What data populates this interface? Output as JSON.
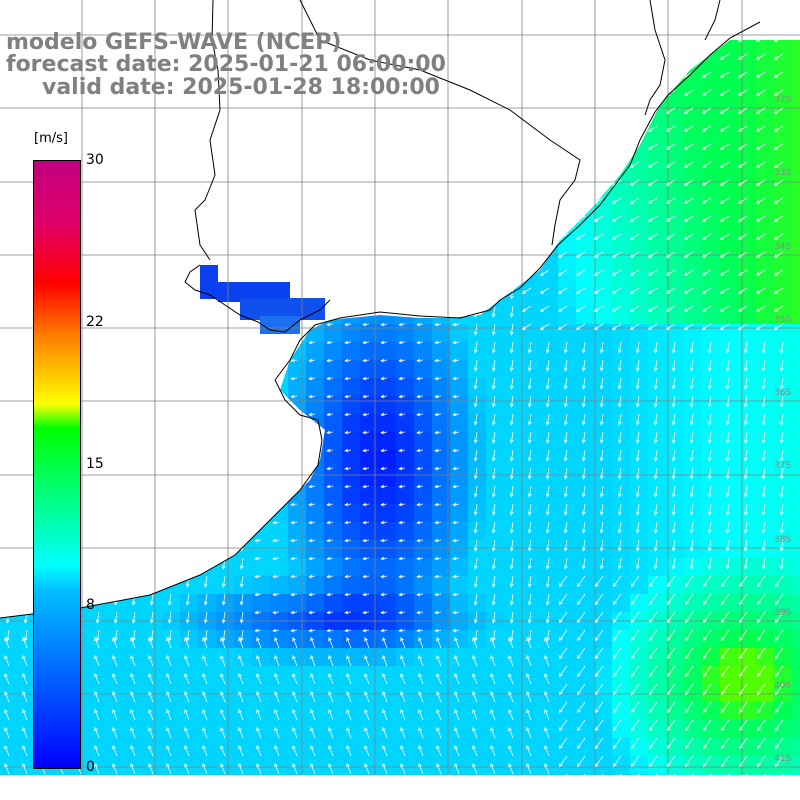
{
  "header": {
    "line1": "modelo GEFS-WAVE (NCEP)",
    "line2": "forecast date: 2025-01-21 06:00:00",
    "line3": "valid date: 2025-01-28 18:00:00"
  },
  "colorbar": {
    "unit": "[m/s]",
    "ticks": [
      {
        "label": "30",
        "value": 30
      },
      {
        "label": "22",
        "value": 22
      },
      {
        "label": "15",
        "value": 15
      },
      {
        "label": "8",
        "value": 8
      },
      {
        "label": "0",
        "value": 0
      }
    ],
    "colors": [
      "#0000ff",
      "#00bfff",
      "#00ffff",
      "#00ff00",
      "#ffff00",
      "#ff8000",
      "#ff0000",
      "#c0007f"
    ]
  },
  "map": {
    "lat_labels": [
      "32S",
      "33S",
      "34S",
      "35S",
      "36S",
      "37S",
      "38S",
      "39S",
      "40S",
      "41S"
    ],
    "land_color": "#ffffff",
    "grid_color": "#808080",
    "arrow_color": "#ffffff"
  }
}
